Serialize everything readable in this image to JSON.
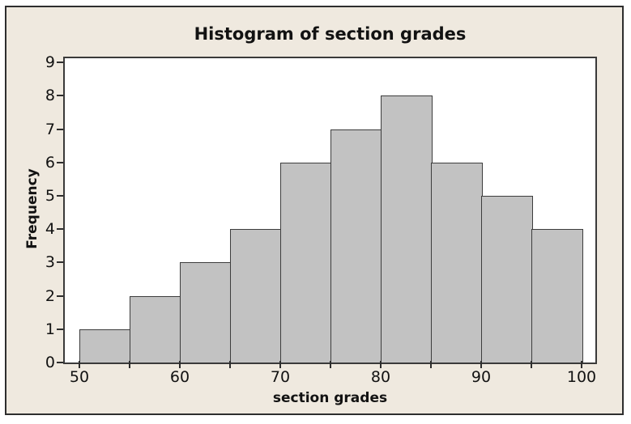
{
  "figure": {
    "title": "Histogram of section grades"
  },
  "chart_data": {
    "type": "bar",
    "subtype": "histogram",
    "title": "Histogram of section grades",
    "xlabel": "section grades",
    "ylabel": "Frequency",
    "bin_edges": [
      50,
      55,
      60,
      65,
      70,
      75,
      80,
      85,
      90,
      95,
      100
    ],
    "frequencies": [
      1,
      2,
      3,
      4,
      6,
      7,
      8,
      6,
      5,
      4
    ],
    "x_major_ticks": [
      50,
      60,
      70,
      80,
      90,
      100
    ],
    "y_ticks": [
      0,
      1,
      2,
      3,
      4,
      5,
      6,
      7,
      8,
      9
    ],
    "xlim": [
      48.5,
      101.4
    ],
    "ylim": [
      0,
      9.1
    ],
    "grid": false,
    "legend": "none"
  },
  "colors": {
    "page_background": "#FFFFFF",
    "figure_background": "#EFE9DF",
    "figure_border": "#2E2E2E",
    "plot_background": "#FFFFFF",
    "plot_border": "#3A3A3A",
    "bar_fill": "#C2C2C2",
    "bar_border": "#3D3D3D",
    "tick_color": "#2E2E2E",
    "text_color": "#121212"
  }
}
